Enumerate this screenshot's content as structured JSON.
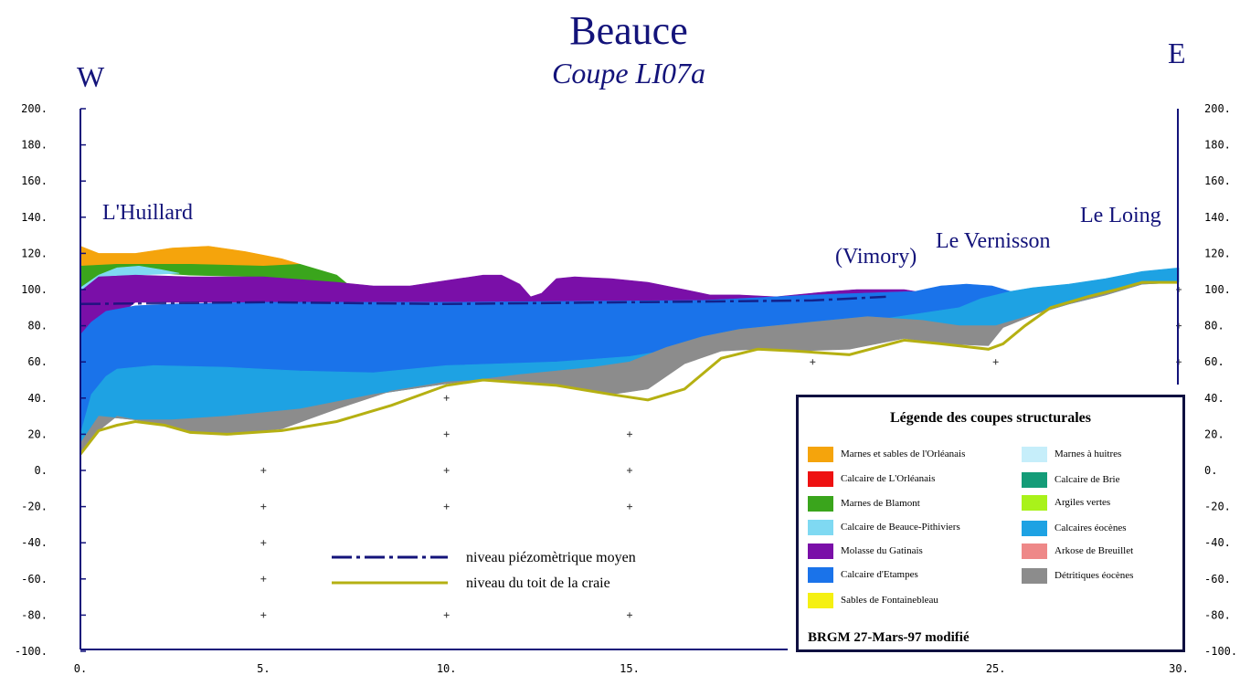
{
  "header": {
    "title": "Beauce",
    "subtitle": "Coupe LI07a",
    "west": "W",
    "east": "E"
  },
  "places": [
    {
      "name": "L'Huillard",
      "km": 0.6
    },
    {
      "name": "(Vimory)",
      "km": 20.8
    },
    {
      "name": "Le Vernisson",
      "km": 23.5
    },
    {
      "name": "Le Loing",
      "km": 28.3
    }
  ],
  "legend": {
    "title": "Légende des coupes structurales",
    "credit": "BRGM 27-Mars-97 modifié",
    "items": [
      {
        "label": "Marnes et sables de l'Orléanais",
        "color": "#F5A40C"
      },
      {
        "label": "Calcaire de L'Orléanais",
        "color": "#EE1111"
      },
      {
        "label": "Marnes de Blamont",
        "color": "#3AA51C"
      },
      {
        "label": "Calcaire de Beauce-Pithiviers",
        "color": "#7FD9F2"
      },
      {
        "label": "Molasse du Gatinais",
        "color": "#7A0FA8"
      },
      {
        "label": "Calcaire d'Etampes",
        "color": "#1A73EA"
      },
      {
        "label": "Sables de Fontainebleau",
        "color": "#F5F012"
      },
      {
        "label": "Marnes à huitres",
        "color": "#C6EEFA"
      },
      {
        "label": "Calcaire de Brie",
        "color": "#149C78"
      },
      {
        "label": "Argiles vertes",
        "color": "#A9F21A"
      },
      {
        "label": "Calcaires éocènes",
        "color": "#1EA2E3"
      },
      {
        "label": "Arkose de Breuillet",
        "color": "#EE8888"
      },
      {
        "label": "Détritiques éocènes",
        "color": "#8C8C8C"
      }
    ]
  },
  "lines_legend": {
    "piezo": "niveau piézomètrique moyen",
    "chalk": "niveau du toit de la craie",
    "piezo_color": "#13137a",
    "chalk_color": "#B5B012"
  },
  "chart_data": {
    "type": "area",
    "title": "Beauce — Coupe LI07a",
    "xlabel": "",
    "ylabel": "",
    "xlim": [
      0,
      30
    ],
    "ylim": [
      -100,
      200
    ],
    "xticks": [
      0,
      5,
      10,
      15,
      25,
      30
    ],
    "xtick_labels": [
      "0.",
      "5.",
      "10.",
      "15.",
      "25.",
      "30."
    ],
    "yticks": [
      200,
      180,
      160,
      140,
      120,
      100,
      80,
      60,
      40,
      20,
      0,
      -20,
      -40,
      -60,
      -80,
      -100
    ],
    "ytick_labels_left": [
      "200.",
      "180.",
      "160.",
      "140.",
      "120.",
      "100.",
      "80.",
      "60.",
      "40.",
      "20.",
      "0.",
      "-20.",
      "-40.",
      "-60.",
      "-80.",
      "-100."
    ],
    "ytick_labels_right": [
      "200.",
      "180.",
      "160.",
      "140.",
      "120.",
      "100.",
      "80.",
      "60.",
      "40.",
      "20.",
      "0.",
      "-20.",
      "-40.",
      "-60.",
      "-80.",
      "-100."
    ],
    "layers": [
      {
        "name": "Marnes et sables de l'Orléanais",
        "color": "#F5A40C",
        "top": [
          [
            0,
            124
          ],
          [
            0.5,
            120
          ],
          [
            1.5,
            120
          ],
          [
            2.5,
            123
          ],
          [
            3.5,
            124
          ],
          [
            4.5,
            121
          ],
          [
            5.5,
            117
          ],
          [
            6,
            114
          ]
        ],
        "bottom": [
          [
            6,
            114
          ],
          [
            5,
            113
          ],
          [
            3,
            114
          ],
          [
            1,
            114
          ],
          [
            0,
            113
          ]
        ]
      },
      {
        "name": "Marnes de Blamont",
        "color": "#3AA51C",
        "top": [
          [
            0,
            113
          ],
          [
            1,
            114
          ],
          [
            3,
            114
          ],
          [
            5,
            113
          ],
          [
            6,
            114
          ],
          [
            7,
            108
          ],
          [
            7.3,
            103
          ]
        ],
        "bottom": [
          [
            7.3,
            103
          ],
          [
            6,
            105
          ],
          [
            5,
            107
          ],
          [
            3,
            108
          ],
          [
            1.5,
            110
          ],
          [
            1,
            110
          ],
          [
            0,
            101
          ]
        ]
      },
      {
        "name": "Calcaire de Beauce-Pithiviers",
        "color": "#7FD9F2",
        "top": [
          [
            0,
            101
          ],
          [
            0.5,
            108
          ],
          [
            1,
            112
          ],
          [
            1.6,
            113
          ],
          [
            2.2,
            111
          ],
          [
            2.7,
            109
          ]
        ],
        "bottom": [
          [
            2.7,
            109
          ],
          [
            1.5,
            108
          ],
          [
            0.5,
            106
          ],
          [
            0,
            99
          ]
        ]
      },
      {
        "name": "Molasse du Gatinais",
        "color": "#7A0FA8",
        "top": [
          [
            0,
            99
          ],
          [
            0.5,
            107
          ],
          [
            1.5,
            108
          ],
          [
            3,
            107
          ],
          [
            5,
            107
          ],
          [
            7,
            104
          ],
          [
            8,
            102
          ],
          [
            9,
            102
          ],
          [
            10,
            105
          ],
          [
            11,
            108
          ],
          [
            11.5,
            108
          ],
          [
            12,
            103
          ],
          [
            12.3,
            96
          ],
          [
            12.6,
            98
          ],
          [
            13,
            106
          ],
          [
            13.5,
            107
          ],
          [
            14.5,
            106
          ],
          [
            15.5,
            104
          ],
          [
            16.5,
            100
          ],
          [
            17.2,
            97
          ],
          [
            18,
            97
          ],
          [
            19,
            96
          ],
          [
            19.5,
            97
          ],
          [
            20.5,
            99
          ],
          [
            21.2,
            100
          ],
          [
            22.5,
            100
          ],
          [
            22.8,
            99
          ]
        ],
        "bottom": [
          [
            22.8,
            99
          ],
          [
            20,
            97
          ],
          [
            17,
            94
          ],
          [
            12,
            93
          ],
          [
            5,
            93
          ],
          [
            1.5,
            93
          ],
          [
            0,
            70
          ]
        ]
      },
      {
        "name": "Calcaire d'Etampes",
        "color": "#1A73EA",
        "top": [
          [
            0,
            75
          ],
          [
            0.3,
            82
          ],
          [
            0.7,
            88
          ],
          [
            1.5,
            91
          ],
          [
            2.5,
            92
          ],
          [
            5,
            93
          ],
          [
            10,
            93
          ],
          [
            17,
            94
          ],
          [
            20,
            97
          ],
          [
            22.8,
            99
          ],
          [
            23.5,
            102
          ],
          [
            24.2,
            103
          ],
          [
            24.9,
            102
          ],
          [
            25.4,
            99
          ]
        ],
        "bottom": [
          [
            25.4,
            99
          ],
          [
            24,
            90
          ],
          [
            22,
            84
          ],
          [
            20,
            78
          ],
          [
            18,
            73
          ],
          [
            16.5,
            68
          ],
          [
            15,
            63
          ],
          [
            13,
            60
          ],
          [
            10,
            58
          ],
          [
            8,
            54
          ],
          [
            6,
            49
          ],
          [
            4,
            45
          ],
          [
            2.5,
            43
          ],
          [
            1,
            41
          ],
          [
            0.3,
            35
          ],
          [
            0,
            20
          ]
        ]
      },
      {
        "name": "Calcaires éocènes",
        "color": "#1EA2E3",
        "top": [
          [
            0,
            20
          ],
          [
            0.3,
            42
          ],
          [
            0.7,
            52
          ],
          [
            1,
            56
          ],
          [
            2,
            58
          ],
          [
            4,
            57
          ],
          [
            6,
            55
          ],
          [
            8,
            54
          ],
          [
            10,
            58
          ],
          [
            13,
            60
          ],
          [
            15,
            63
          ],
          [
            16.5,
            68
          ],
          [
            18,
            73
          ],
          [
            20,
            78
          ],
          [
            22,
            84
          ],
          [
            24,
            90
          ],
          [
            24.6,
            95
          ],
          [
            25.4,
            99
          ],
          [
            26,
            101
          ],
          [
            27,
            103
          ],
          [
            28,
            106
          ],
          [
            29,
            110
          ],
          [
            30,
            112
          ]
        ],
        "bottom": [
          [
            30,
            104
          ],
          [
            29,
            103
          ],
          [
            28,
            97
          ],
          [
            27,
            92
          ],
          [
            26,
            86
          ],
          [
            25,
            80
          ],
          [
            24,
            80
          ],
          [
            23,
            83
          ],
          [
            21.5,
            85
          ],
          [
            20,
            82
          ],
          [
            18,
            78
          ],
          [
            17,
            74
          ],
          [
            16,
            68
          ],
          [
            15,
            60
          ],
          [
            14,
            57
          ],
          [
            12,
            53
          ],
          [
            10,
            48
          ],
          [
            8,
            42
          ],
          [
            6,
            34
          ],
          [
            4,
            30
          ],
          [
            2.5,
            28
          ],
          [
            1.5,
            28
          ],
          [
            1,
            29
          ],
          [
            0.5,
            30
          ],
          [
            0,
            15
          ]
        ]
      },
      {
        "name": "Détritiques éocènes",
        "color": "#8C8C8C",
        "top": [
          [
            0,
            15
          ],
          [
            0.5,
            30
          ],
          [
            1,
            29
          ],
          [
            1.5,
            28
          ],
          [
            2.5,
            28
          ],
          [
            4,
            30
          ],
          [
            6,
            34
          ],
          [
            8,
            42
          ],
          [
            10,
            48
          ],
          [
            12,
            53
          ],
          [
            14,
            57
          ],
          [
            15,
            60
          ],
          [
            16,
            68
          ],
          [
            17,
            74
          ],
          [
            18,
            78
          ],
          [
            20,
            82
          ],
          [
            21.5,
            85
          ],
          [
            23,
            83
          ],
          [
            24,
            80
          ],
          [
            25,
            80
          ],
          [
            26,
            86
          ],
          [
            27,
            92
          ],
          [
            28,
            97
          ],
          [
            29,
            103
          ],
          [
            30,
            104
          ]
        ],
        "bottom": [
          [
            30,
            104
          ],
          [
            29,
            104
          ],
          [
            28.3,
            100
          ],
          [
            27.5,
            96
          ],
          [
            26.5,
            90
          ],
          [
            25.8,
            84
          ],
          [
            25.2,
            79
          ],
          [
            24.8,
            69
          ],
          [
            23.5,
            70
          ],
          [
            22.5,
            73
          ],
          [
            21,
            67
          ],
          [
            19.5,
            66
          ],
          [
            18.5,
            67
          ],
          [
            17.5,
            66
          ],
          [
            16.5,
            59
          ],
          [
            15.5,
            45
          ],
          [
            14.5,
            42
          ],
          [
            13,
            47
          ],
          [
            11,
            50
          ],
          [
            10,
            49
          ],
          [
            8.5,
            44
          ],
          [
            7,
            34
          ],
          [
            5.5,
            23
          ],
          [
            4,
            20
          ],
          [
            3,
            21
          ],
          [
            2.3,
            25
          ],
          [
            1.5,
            28
          ],
          [
            1,
            30
          ],
          [
            0.5,
            22
          ],
          [
            0,
            9
          ]
        ]
      }
    ],
    "chalk_top": [
      [
        0,
        9
      ],
      [
        0.5,
        22
      ],
      [
        1,
        25
      ],
      [
        1.5,
        27
      ],
      [
        2.3,
        25
      ],
      [
        3,
        21
      ],
      [
        4,
        20
      ],
      [
        5.5,
        22
      ],
      [
        7,
        27
      ],
      [
        8.5,
        36
      ],
      [
        10,
        47
      ],
      [
        11,
        50
      ],
      [
        13,
        47
      ],
      [
        14.5,
        42
      ],
      [
        15.5,
        39
      ],
      [
        16.5,
        45
      ],
      [
        17.5,
        62
      ],
      [
        18.5,
        67
      ],
      [
        19.5,
        66
      ],
      [
        21,
        64
      ],
      [
        22.5,
        72
      ],
      [
        23.5,
        70
      ],
      [
        24.8,
        67
      ],
      [
        25.2,
        70
      ],
      [
        25.8,
        80
      ],
      [
        26.5,
        90
      ],
      [
        27.5,
        96
      ],
      [
        28.3,
        100
      ],
      [
        29,
        104
      ],
      [
        30,
        104
      ]
    ],
    "piezo_level": [
      [
        0,
        92
      ],
      [
        5,
        93
      ],
      [
        10,
        92
      ],
      [
        15,
        93
      ],
      [
        20,
        94
      ],
      [
        22,
        96
      ]
    ],
    "grid_crosses": [
      [
        5,
        0
      ],
      [
        5,
        -20
      ],
      [
        5,
        -40
      ],
      [
        5,
        -60
      ],
      [
        5,
        -80
      ],
      [
        10,
        40
      ],
      [
        10,
        20
      ],
      [
        10,
        0
      ],
      [
        10,
        -20
      ],
      [
        10,
        -80
      ],
      [
        15,
        20
      ],
      [
        15,
        0
      ],
      [
        15,
        -20
      ],
      [
        15,
        -80
      ],
      [
        20,
        60
      ],
      [
        25,
        60
      ],
      [
        30,
        100
      ],
      [
        30,
        80
      ],
      [
        30,
        60
      ]
    ]
  }
}
